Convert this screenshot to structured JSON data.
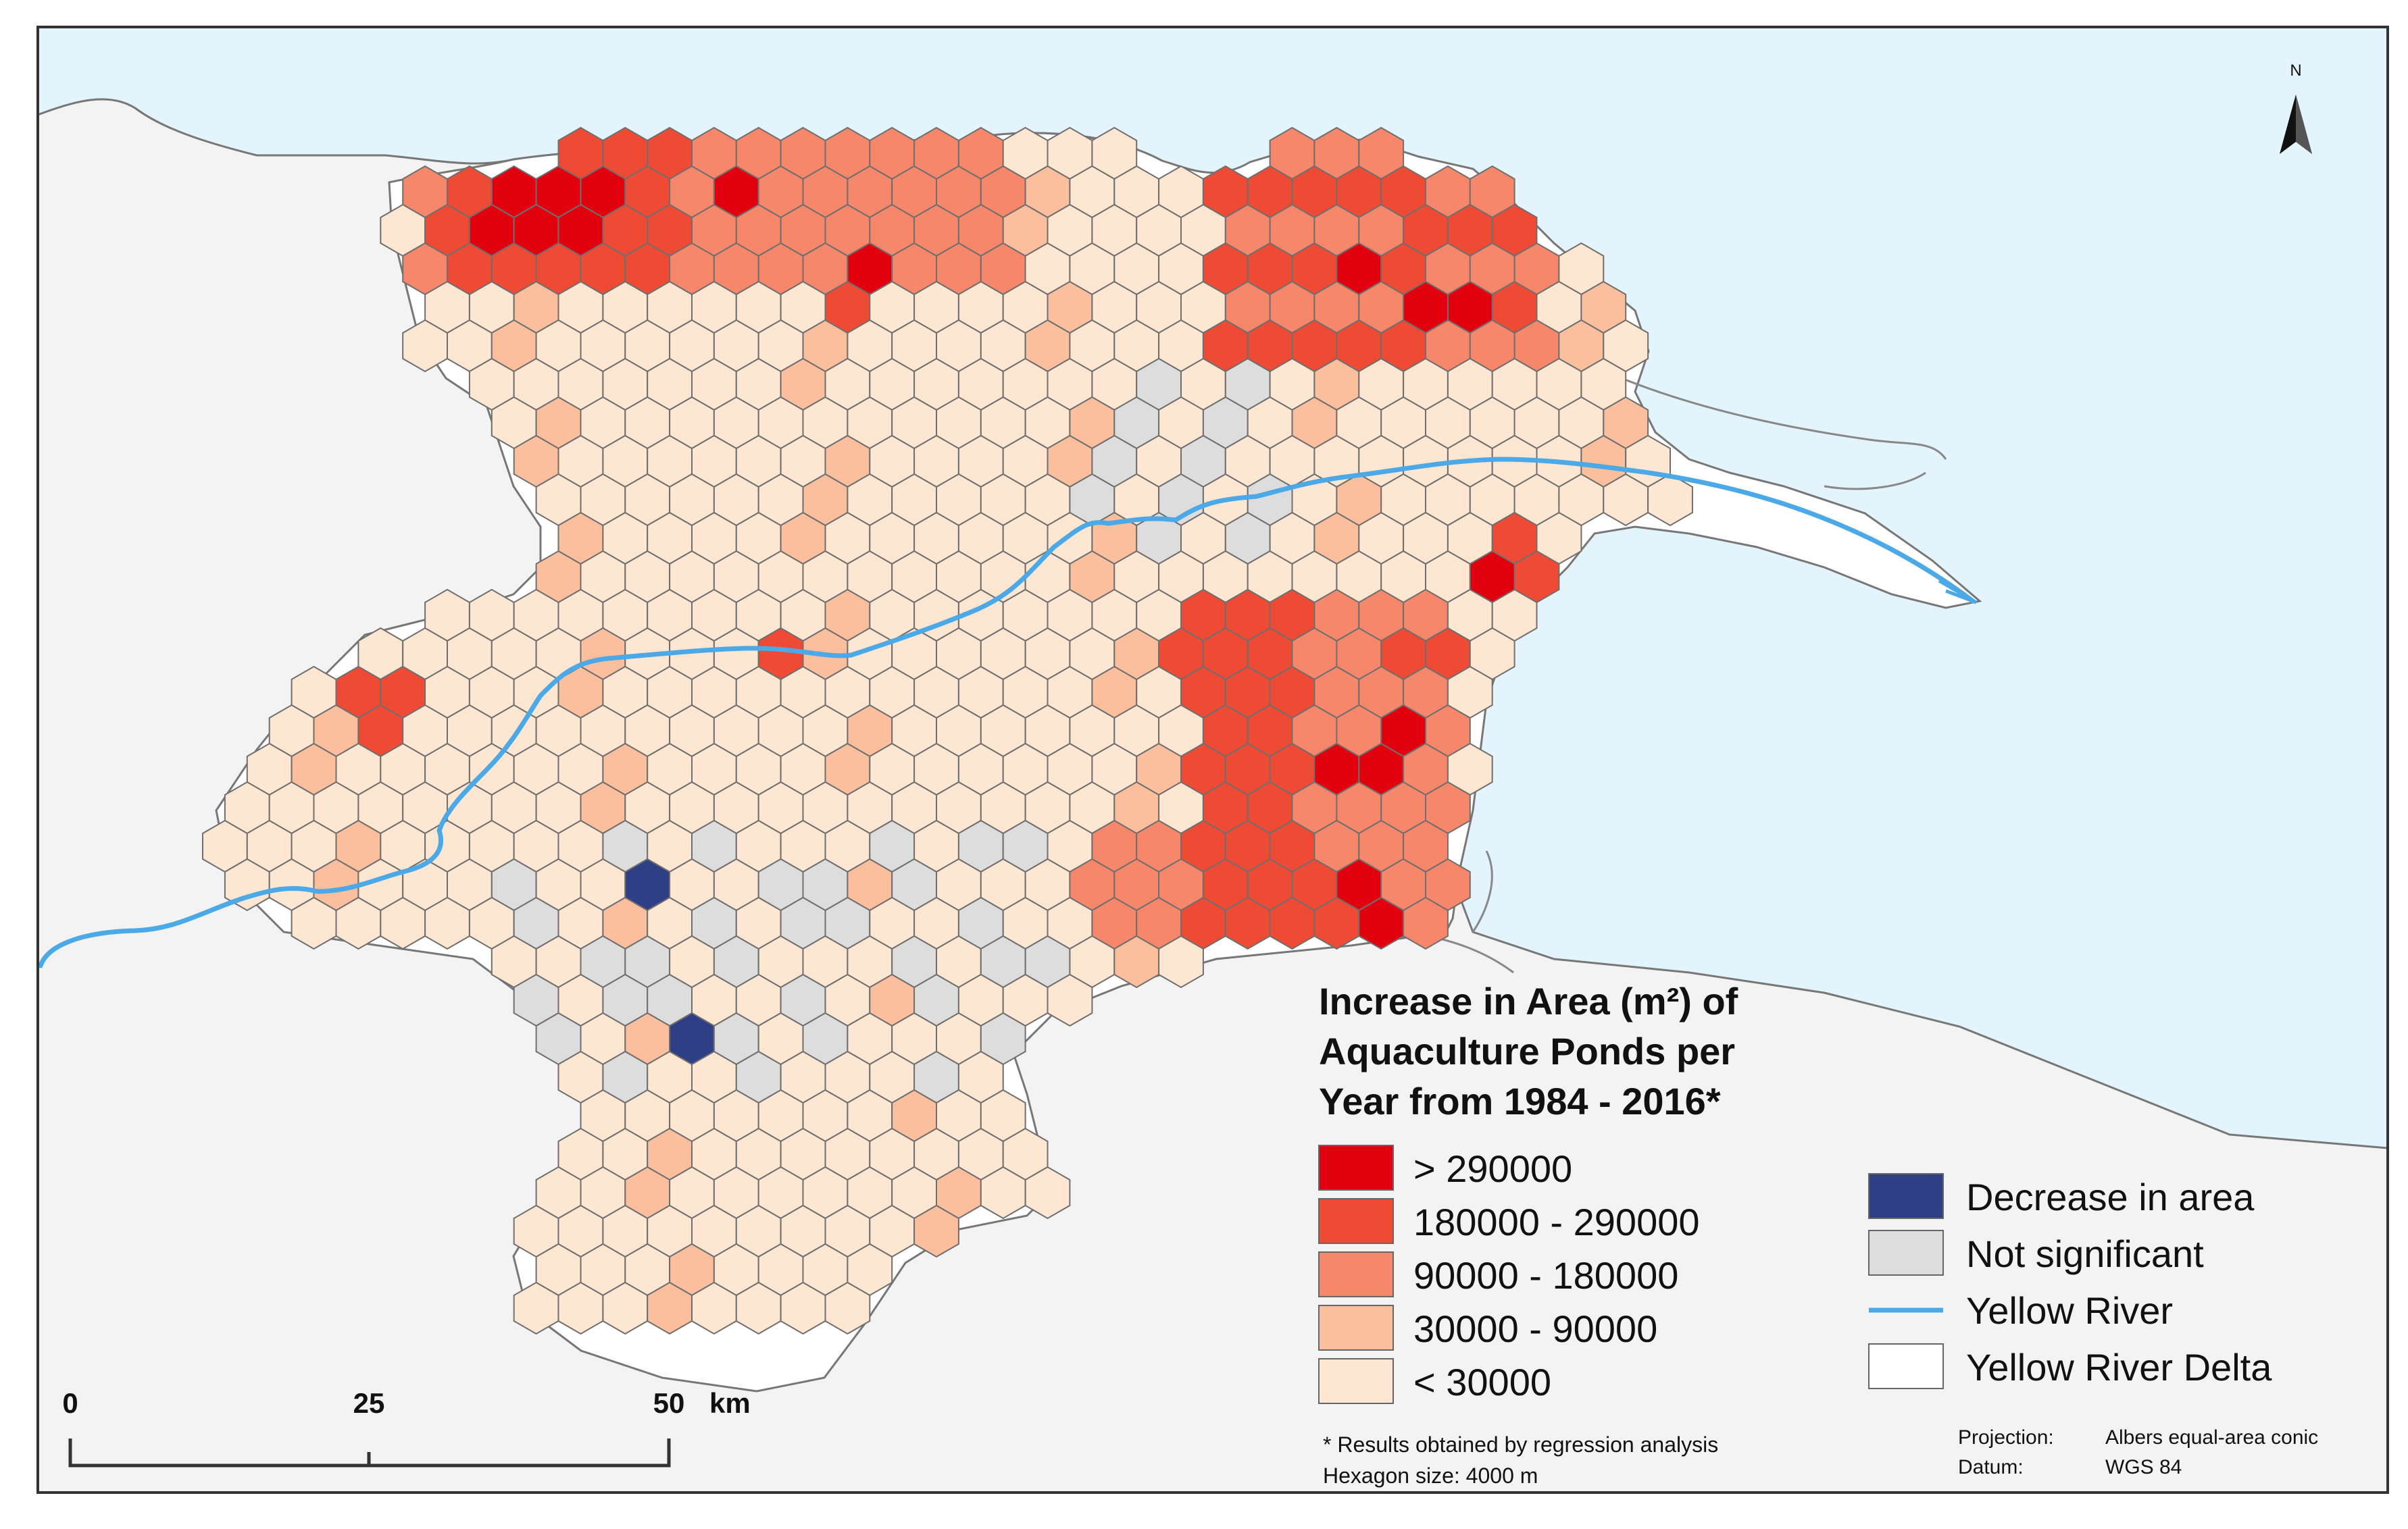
{
  "legend": {
    "title_lines": [
      "Increase in Area (m²) of",
      "Aquaculture Ponds per",
      "Year from 1984 - 2016*"
    ],
    "classes": [
      {
        "label": "> 290000",
        "color": "#e3000e"
      },
      {
        "label": "180000 - 290000",
        "color": "#ef4a33"
      },
      {
        "label": "90000 - 180000",
        "color": "#f6876a"
      },
      {
        "label": "30000 - 90000",
        "color": "#fbbf9e"
      },
      {
        "label": "< 30000",
        "color": "#fde6d2"
      }
    ],
    "other": [
      {
        "label": "Decrease in area",
        "color": "#2f3f86",
        "kind": "box"
      },
      {
        "label": "Not significant",
        "color": "#dddddd",
        "kind": "box"
      },
      {
        "label": "Yellow River",
        "color": "#4aa9e6",
        "kind": "line"
      },
      {
        "label": "Yellow River Delta",
        "color": "#ffffff",
        "kind": "box"
      }
    ]
  },
  "notes": {
    "line1": "* Results obtained by regression analysis",
    "line2": "Hexagon size: 4000 m"
  },
  "scale": {
    "labels": [
      "0",
      "25",
      "50"
    ],
    "unit": "km"
  },
  "north_label": "N",
  "projection": {
    "projection_label": "Projection:",
    "projection_value": "Albers equal-area conic",
    "datum_label": "Datum:",
    "datum_value": "WGS 84"
  },
  "colors": {
    "sea": "#e4f4fc",
    "land": "#f3f3f3",
    "delta": "#ffffff",
    "hex_outline": "#6f6f6f",
    "river": "#4aa9e6",
    "coast": "#777777"
  }
}
